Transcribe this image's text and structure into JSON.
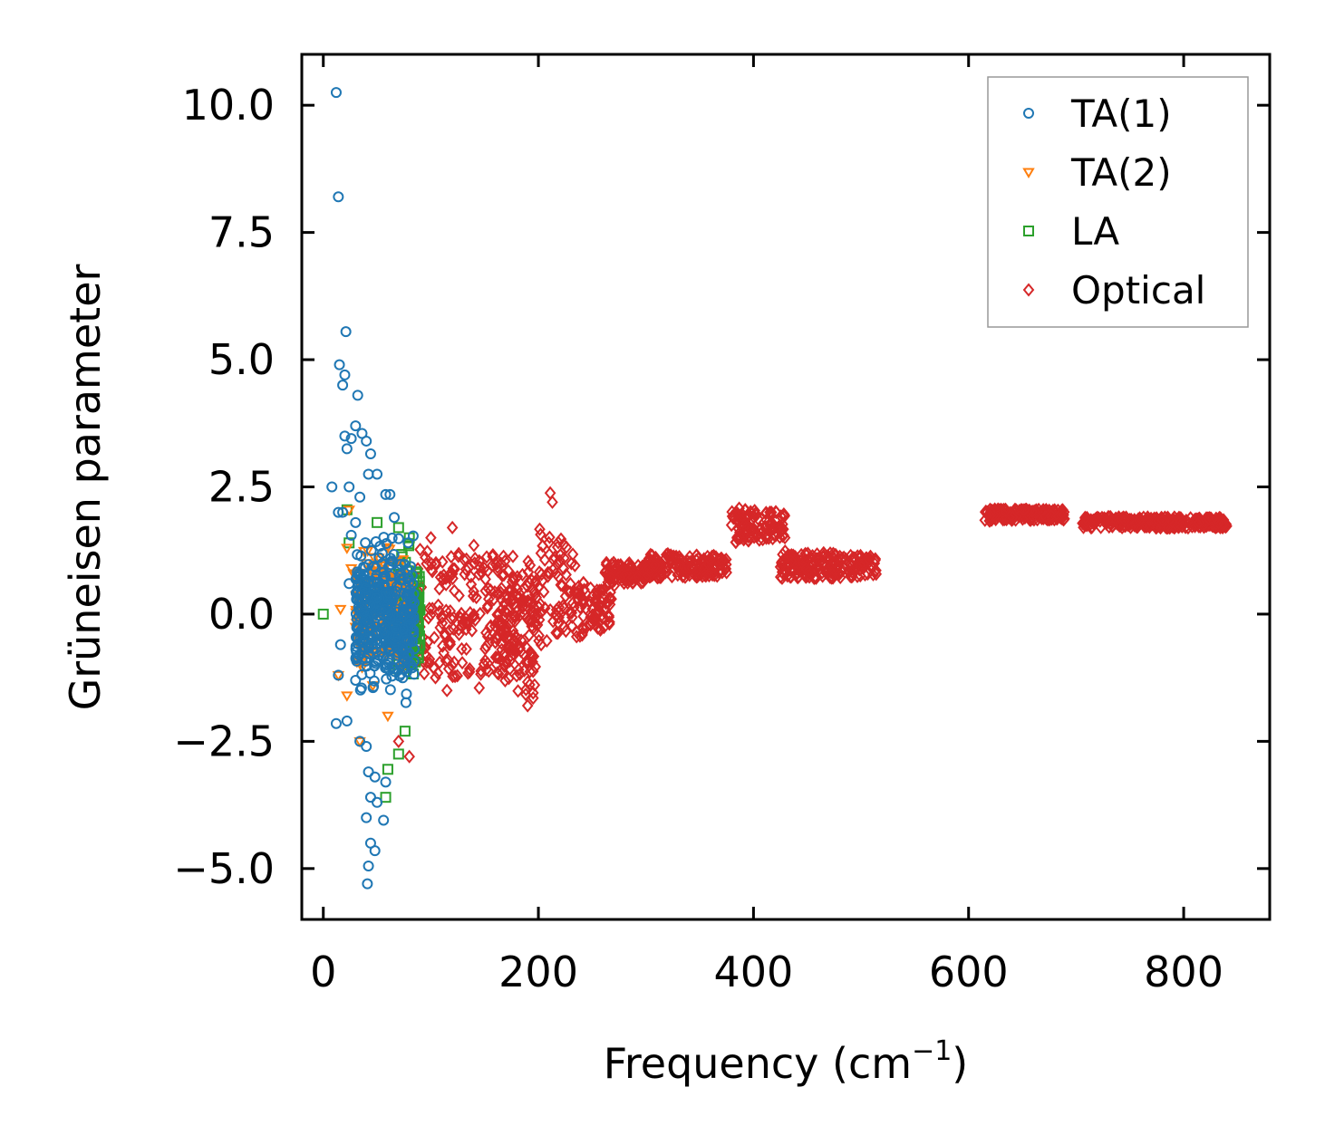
{
  "chart_data": {
    "type": "scatter",
    "title": "",
    "xlabel_text": "Frequency (cm",
    "xlabel_sup": "−1",
    "xlabel_close": ")",
    "ylabel": "Grüneisen parameter",
    "xlim": [
      -20,
      880
    ],
    "ylim": [
      -6.0,
      11.0
    ],
    "xticks": [
      0,
      200,
      400,
      600,
      800
    ],
    "xtick_labels": [
      "0",
      "200",
      "400",
      "600",
      "800"
    ],
    "yticks": [
      -5.0,
      -2.5,
      0.0,
      2.5,
      5.0,
      7.5,
      10.0
    ],
    "ytick_labels": [
      "−5.0",
      "−2.5",
      "0.0",
      "2.5",
      "5.0",
      "7.5",
      "10.0"
    ],
    "legend_position": "top-right",
    "series": [
      {
        "name": "TA(1)",
        "marker": "circle",
        "color": "#1f77b4",
        "points": [
          [
            12,
            10.25
          ],
          [
            14,
            8.2
          ],
          [
            21,
            5.55
          ],
          [
            15,
            4.9
          ],
          [
            20,
            4.7
          ],
          [
            18,
            4.5
          ],
          [
            32,
            4.3
          ],
          [
            30,
            3.7
          ],
          [
            36,
            3.55
          ],
          [
            20,
            3.5
          ],
          [
            40,
            3.4
          ],
          [
            26,
            3.45
          ],
          [
            22,
            3.25
          ],
          [
            44,
            3.15
          ],
          [
            8,
            2.5
          ],
          [
            24,
            2.5
          ],
          [
            42,
            2.75
          ],
          [
            50,
            2.75
          ],
          [
            34,
            2.3
          ],
          [
            58,
            2.35
          ],
          [
            62,
            2.35
          ],
          [
            14,
            2.0
          ],
          [
            18,
            2.0
          ],
          [
            30,
            1.8
          ],
          [
            26,
            1.55
          ],
          [
            66,
            1.9
          ],
          [
            24,
            0.6
          ],
          [
            16,
            -0.6
          ],
          [
            14,
            -1.2
          ],
          [
            30,
            -1.3
          ],
          [
            12,
            -2.15
          ],
          [
            22,
            -2.1
          ],
          [
            34,
            -2.5
          ],
          [
            40,
            -2.6
          ],
          [
            42,
            -3.1
          ],
          [
            48,
            -3.2
          ],
          [
            58,
            -3.3
          ],
          [
            44,
            -3.6
          ],
          [
            50,
            -3.7
          ],
          [
            40,
            -4.0
          ],
          [
            56,
            -4.05
          ],
          [
            44,
            -4.5
          ],
          [
            48,
            -4.65
          ],
          [
            42,
            -4.95
          ],
          [
            41,
            -5.3
          ]
        ],
        "cloud": {
          "x_range": [
            30,
            85
          ],
          "y_range": [
            -2.0,
            1.9
          ],
          "count": 420
        }
      },
      {
        "name": "TA(2)",
        "marker": "triangle-down",
        "color": "#ff7f0e",
        "points": [
          [
            16,
            0.1
          ],
          [
            24,
            2.05
          ],
          [
            22,
            1.3
          ],
          [
            14,
            -1.2
          ],
          [
            22,
            -1.6
          ],
          [
            34,
            -2.5
          ],
          [
            46,
            -1.4
          ],
          [
            28,
            0.8
          ],
          [
            30,
            -0.25
          ],
          [
            26,
            0.9
          ],
          [
            40,
            1.0
          ],
          [
            60,
            -2.0
          ]
        ],
        "cloud": {
          "x_range": [
            30,
            80
          ],
          "y_range": [
            -1.5,
            1.7
          ],
          "count": 220
        }
      },
      {
        "name": "LA",
        "marker": "square",
        "color": "#2ca02c",
        "points": [
          [
            0,
            0.0
          ],
          [
            22,
            2.05
          ],
          [
            24,
            1.4
          ],
          [
            50,
            1.8
          ],
          [
            70,
            1.7
          ],
          [
            76,
            -2.3
          ],
          [
            70,
            -2.75
          ],
          [
            60,
            -3.05
          ],
          [
            58,
            -3.6
          ],
          [
            80,
            1.5
          ],
          [
            84,
            0.5
          ],
          [
            78,
            -1.0
          ]
        ],
        "cloud": {
          "x_range": [
            68,
            90
          ],
          "y_range": [
            -1.7,
            1.6
          ],
          "count": 180
        }
      },
      {
        "name": "Optical",
        "marker": "diamond",
        "color": "#d62728",
        "points": [
          [
            211,
            2.38
          ],
          [
            213,
            2.2
          ],
          [
            120,
            1.7
          ],
          [
            100,
            1.5
          ],
          [
            140,
            1.35
          ],
          [
            115,
            -1.5
          ],
          [
            145,
            -1.45
          ],
          [
            190,
            -1.8
          ],
          [
            80,
            -2.8
          ],
          [
            70,
            -2.5
          ]
        ],
        "bands": [
          {
            "x": [
              85,
              200
            ],
            "center": 0.0,
            "half": [
              1.3,
              1.1
            ]
          },
          {
            "x": [
              160,
              198
            ],
            "center": -0.5,
            "half": [
              0.9,
              1.2
            ]
          },
          {
            "x": [
              200,
              235
            ],
            "center": 0.6,
            "half": [
              1.3,
              0.8
            ]
          },
          {
            "x": [
              235,
              268
            ],
            "center": 0.1,
            "half": [
              0.6,
              0.35
            ]
          },
          {
            "x": [
              262,
              300
            ],
            "center": 0.8,
            "half": [
              0.25,
              0.2
            ]
          },
          {
            "x": [
              300,
              375
            ],
            "center": 0.95,
            "half": [
              0.25,
              0.2
            ]
          },
          {
            "x": [
              378,
              430
            ],
            "center": 1.75,
            "half": [
              0.35,
              0.25
            ]
          },
          {
            "x": [
              425,
              515
            ],
            "center": 0.95,
            "half": [
              0.3,
              0.2
            ]
          },
          {
            "x": [
              615,
              690
            ],
            "center": 1.95,
            "half": [
              0.12,
              0.1
            ]
          },
          {
            "x": [
              705,
              840
            ],
            "center": 1.8,
            "half": [
              0.12,
              0.1
            ]
          }
        ]
      }
    ]
  }
}
